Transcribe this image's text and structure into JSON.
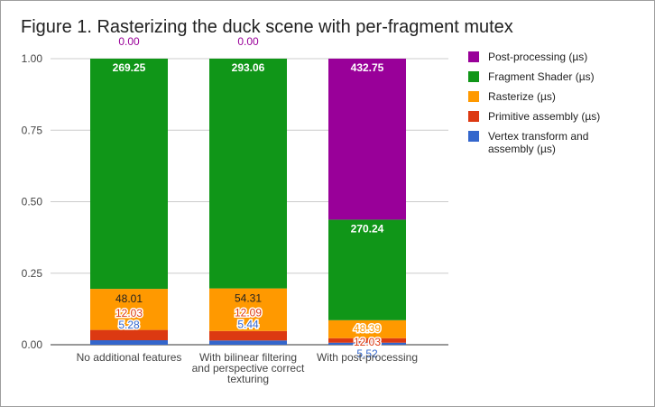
{
  "chart_data": {
    "type": "bar",
    "stacked": true,
    "normalized": true,
    "title": "Figure 1. Rasterizing the duck scene with per-fragment mutex",
    "categories": [
      [
        "No additional features"
      ],
      [
        "With bilinear filtering",
        "and perspective correct",
        "texturing"
      ],
      [
        "With post-processing"
      ]
    ],
    "ylim": [
      0,
      1
    ],
    "yticks": [
      "0.00",
      "0.25",
      "0.50",
      "0.75",
      "1.00"
    ],
    "ytick_values": [
      0,
      0.25,
      0.5,
      0.75,
      1.0
    ],
    "grid": true,
    "legend_position": "right",
    "series": [
      {
        "name": "Vertex transform and assembly (µs)",
        "color": "#3366cc",
        "values": [
          5.28,
          5.44,
          5.52
        ],
        "labels": [
          "5.28",
          "5.44",
          "5.52"
        ],
        "label_color": "#3366cc"
      },
      {
        "name": "Primitive assembly (µs)",
        "color": "#dc3912",
        "values": [
          12.03,
          12.09,
          12.03
        ],
        "labels": [
          "12.03",
          "12.09",
          "12.03"
        ],
        "label_color": "#dc3912"
      },
      {
        "name": "Rasterize (µs)",
        "color": "#ff9900",
        "values": [
          48.01,
          54.31,
          48.39
        ],
        "labels": [
          "48.01",
          "54.31",
          "48.39"
        ],
        "label_color": "#ff9900"
      },
      {
        "name": "Fragment Shader (µs)",
        "color": "#109618",
        "values": [
          269.25,
          293.06,
          270.24
        ],
        "labels": [
          "269.25",
          "293.06",
          "270.24"
        ],
        "label_color": "#ffffff"
      },
      {
        "name": "Post-processing (µs)",
        "color": "#990099",
        "values": [
          0,
          0,
          432.75
        ],
        "labels": [
          "0.00",
          "0.00",
          "432.75"
        ],
        "label_color": "#990099"
      }
    ]
  }
}
